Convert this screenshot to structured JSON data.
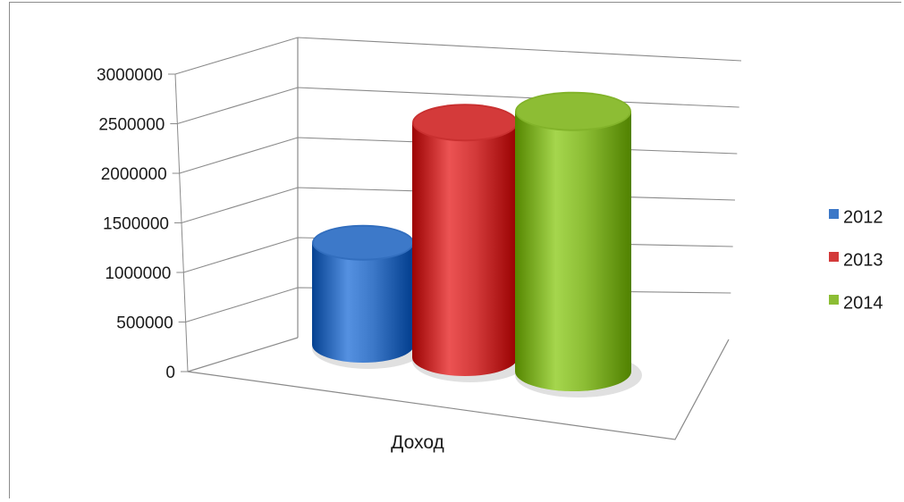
{
  "chart_data": {
    "type": "bar",
    "categories": [
      "Доход"
    ],
    "series": [
      {
        "name": "2012",
        "values": [
          1000000
        ],
        "color": "#3c78c8"
      },
      {
        "name": "2013",
        "values": [
          2300000
        ],
        "color": "#d33a3a"
      },
      {
        "name": "2014",
        "values": [
          2550000
        ],
        "color": "#8cbd34"
      }
    ],
    "y_ticks": [
      "0",
      "500000",
      "1000000",
      "1500000",
      "2000000",
      "2500000",
      "3000000"
    ],
    "ylim": [
      0,
      3000000
    ],
    "grid": true,
    "legend_position": "right",
    "bar_shape": "cylinder",
    "title": "",
    "xlabel": "",
    "ylabel": ""
  }
}
